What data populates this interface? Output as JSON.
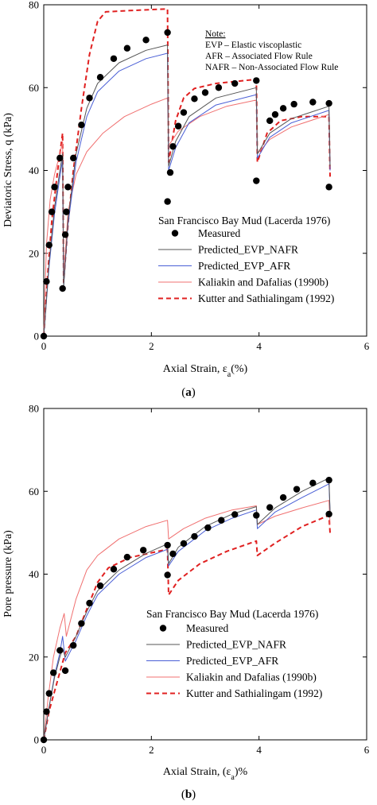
{
  "chart_data": [
    {
      "type": "line",
      "caption": "(a)",
      "xlabel": "Axial Strain, εa(%)",
      "ylabel": "Deviatoric Stress, q (kPa)",
      "xlim": [
        0,
        6
      ],
      "ylim": [
        0,
        80
      ],
      "xticks": [
        0,
        2,
        4,
        6
      ],
      "yticks": [
        0,
        20,
        40,
        60,
        80
      ],
      "note": {
        "title": "Note:",
        "lines": [
          "EVP  – Elastic viscoplastic",
          "AFR  – Associated Flow Rule",
          "NAFR – Non-Associated Flow Rule"
        ]
      },
      "legend_title": "San Francisco Bay Mud (Lacerda 1976)",
      "legend_placement": "center-right",
      "series": [
        {
          "name": "Measured",
          "style": "markers",
          "color": "#000000",
          "points": [
            [
              0,
              0
            ],
            [
              0.05,
              13.2
            ],
            [
              0.1,
              22
            ],
            [
              0.15,
              30
            ],
            [
              0.2,
              36
            ],
            [
              0.3,
              43
            ],
            [
              0.35,
              11.5
            ],
            [
              0.4,
              24.5
            ],
            [
              0.42,
              30
            ],
            [
              0.45,
              36
            ],
            [
              0.55,
              43
            ],
            [
              0.7,
              51
            ],
            [
              0.85,
              57.5
            ],
            [
              1.05,
              62.5
            ],
            [
              1.3,
              67
            ],
            [
              1.55,
              69.5
            ],
            [
              1.9,
              71.5
            ],
            [
              2.3,
              73.3
            ],
            [
              2.3,
              32.5
            ],
            [
              2.35,
              39.5
            ],
            [
              2.4,
              45.8
            ],
            [
              2.5,
              50.7
            ],
            [
              2.6,
              54
            ],
            [
              2.8,
              57.3
            ],
            [
              3.0,
              58.8
            ],
            [
              3.25,
              60
            ],
            [
              3.55,
              61
            ],
            [
              3.95,
              61.7
            ],
            [
              3.95,
              37.5
            ],
            [
              4.2,
              52
            ],
            [
              4.3,
              53.5
            ],
            [
              4.45,
              55
            ],
            [
              4.65,
              56
            ],
            [
              5.0,
              56.5
            ],
            [
              5.3,
              56.2
            ],
            [
              5.3,
              36
            ]
          ]
        },
        {
          "name": "Predicted_EVP_NAFR",
          "style": "solid",
          "color": "#555555",
          "points": [
            [
              0,
              0
            ],
            [
              0.1,
              18
            ],
            [
              0.2,
              31
            ],
            [
              0.3,
              40
            ],
            [
              0.35,
              44
            ],
            [
              0.37,
              12
            ],
            [
              0.45,
              28
            ],
            [
              0.6,
              44
            ],
            [
              0.8,
              55
            ],
            [
              1.0,
              61
            ],
            [
              1.4,
              66
            ],
            [
              1.9,
              69
            ],
            [
              2.3,
              70.3
            ],
            [
              2.32,
              41
            ],
            [
              2.45,
              47
            ],
            [
              2.7,
              53
            ],
            [
              3.2,
              57.5
            ],
            [
              3.95,
              60
            ],
            [
              3.97,
              44
            ],
            [
              4.2,
              49
            ],
            [
              4.6,
              52.5
            ],
            [
              5.3,
              55.5
            ],
            [
              5.32,
              41
            ]
          ]
        },
        {
          "name": "Predicted_EVP_AFR",
          "style": "solid",
          "color": "#4a5fd6",
          "points": [
            [
              0,
              0
            ],
            [
              0.1,
              17
            ],
            [
              0.2,
              29.5
            ],
            [
              0.3,
              38.5
            ],
            [
              0.35,
              42.5
            ],
            [
              0.37,
              12
            ],
            [
              0.45,
              27
            ],
            [
              0.6,
              42
            ],
            [
              0.8,
              53
            ],
            [
              1.0,
              59
            ],
            [
              1.4,
              64
            ],
            [
              1.9,
              67
            ],
            [
              2.3,
              68.3
            ],
            [
              2.32,
              40
            ],
            [
              2.45,
              45.5
            ],
            [
              2.7,
              51.5
            ],
            [
              3.2,
              55.8
            ],
            [
              3.95,
              58.3
            ],
            [
              3.97,
              43
            ],
            [
              4.2,
              48
            ],
            [
              4.6,
              51.5
            ],
            [
              5.3,
              54.5
            ],
            [
              5.32,
              40
            ]
          ]
        },
        {
          "name": "Kaliakin and Dafalias (1990b)",
          "style": "solid",
          "color": "#f07070",
          "points": [
            [
              0,
              0
            ],
            [
              0.05,
              22
            ],
            [
              0.12,
              33
            ],
            [
              0.2,
              39
            ],
            [
              0.3,
              44
            ],
            [
              0.35,
              47
            ],
            [
              0.37,
              14
            ],
            [
              0.45,
              30
            ],
            [
              0.6,
              39
            ],
            [
              0.8,
              44.5
            ],
            [
              1.1,
              49
            ],
            [
              1.5,
              53
            ],
            [
              2.0,
              56
            ],
            [
              2.3,
              57.5
            ],
            [
              2.32,
              46
            ],
            [
              2.5,
              49.5
            ],
            [
              2.9,
              53
            ],
            [
              3.4,
              55.5
            ],
            [
              3.95,
              57
            ],
            [
              3.97,
              44
            ],
            [
              4.2,
              47.5
            ],
            [
              4.6,
              50.5
            ],
            [
              5.3,
              53.5
            ],
            [
              5.32,
              41
            ]
          ]
        },
        {
          "name": "Kutter and Sathialingam (1992)",
          "style": "dashed",
          "color": "#e02020",
          "points": [
            [
              0,
              0
            ],
            [
              0.08,
              16
            ],
            [
              0.15,
              28
            ],
            [
              0.25,
              39
            ],
            [
              0.35,
              49
            ],
            [
              0.37,
              13
            ],
            [
              0.45,
              27
            ],
            [
              0.55,
              40
            ],
            [
              0.7,
              55
            ],
            [
              0.85,
              68
            ],
            [
              1.0,
              76
            ],
            [
              1.15,
              78.3
            ],
            [
              1.6,
              78.6
            ],
            [
              2.3,
              79
            ],
            [
              2.32,
              42
            ],
            [
              2.45,
              52
            ],
            [
              2.6,
              57.5
            ],
            [
              2.8,
              59.8
            ],
            [
              3.2,
              61
            ],
            [
              3.95,
              62
            ],
            [
              3.97,
              42
            ],
            [
              4.15,
              49
            ],
            [
              4.4,
              52
            ],
            [
              4.8,
              53
            ],
            [
              5.3,
              53
            ],
            [
              5.32,
              38.5
            ]
          ]
        }
      ]
    },
    {
      "type": "line",
      "caption": "(b)",
      "xlabel": "Axial Strain, (εa)%",
      "ylabel": "Pore pressure (kPa)",
      "xlim": [
        0,
        6
      ],
      "ylim": [
        0,
        80
      ],
      "xticks": [
        0,
        2,
        4,
        6
      ],
      "yticks": [
        0,
        20,
        40,
        60,
        80
      ],
      "legend_title": "San Francisco Bay Mud (Lacerda 1976)",
      "legend_placement": "bottom-right",
      "series": [
        {
          "name": "Measured",
          "style": "markers",
          "color": "#000000",
          "points": [
            [
              0,
              0
            ],
            [
              0.05,
              6.8
            ],
            [
              0.1,
              11.2
            ],
            [
              0.18,
              16.2
            ],
            [
              0.3,
              21.6
            ],
            [
              0.4,
              16.7
            ],
            [
              0.55,
              22.8
            ],
            [
              0.7,
              28.1
            ],
            [
              0.85,
              33
            ],
            [
              1.05,
              37.2
            ],
            [
              1.3,
              41.2
            ],
            [
              1.55,
              44.1
            ],
            [
              1.85,
              45.8
            ],
            [
              2.3,
              47
            ],
            [
              2.3,
              39.8
            ],
            [
              2.4,
              44.9
            ],
            [
              2.6,
              47.4
            ],
            [
              2.8,
              49.1
            ],
            [
              3.05,
              51.2
            ],
            [
              3.3,
              53
            ],
            [
              3.55,
              54.4
            ],
            [
              3.95,
              54.2
            ],
            [
              4.2,
              56.1
            ],
            [
              4.45,
              58.5
            ],
            [
              4.7,
              60.5
            ],
            [
              5.0,
              62
            ],
            [
              5.3,
              62.7
            ],
            [
              5.3,
              54.5
            ]
          ]
        },
        {
          "name": "Predicted_EVP_NAFR",
          "style": "solid",
          "color": "#555555",
          "points": [
            [
              0,
              0
            ],
            [
              0.1,
              8
            ],
            [
              0.2,
              15
            ],
            [
              0.3,
              20
            ],
            [
              0.35,
              22
            ],
            [
              0.4,
              20
            ],
            [
              0.6,
              25
            ],
            [
              0.8,
              31
            ],
            [
              1.0,
              36
            ],
            [
              1.4,
              41
            ],
            [
              1.9,
              45
            ],
            [
              2.3,
              47.3
            ],
            [
              2.32,
              42.5
            ],
            [
              2.5,
              46.5
            ],
            [
              3.0,
              51.5
            ],
            [
              3.5,
              54.5
            ],
            [
              3.95,
              56.3
            ],
            [
              3.97,
              52
            ],
            [
              4.3,
              56
            ],
            [
              4.8,
              60
            ],
            [
              5.3,
              63.2
            ],
            [
              5.32,
              55
            ]
          ]
        },
        {
          "name": "Predicted_EVP_AFR",
          "style": "solid",
          "color": "#4a5fd6",
          "points": [
            [
              0,
              0
            ],
            [
              0.1,
              8
            ],
            [
              0.2,
              15.5
            ],
            [
              0.3,
              21
            ],
            [
              0.35,
              25
            ],
            [
              0.4,
              19
            ],
            [
              0.6,
              24
            ],
            [
              0.8,
              30
            ],
            [
              1.0,
              35
            ],
            [
              1.4,
              40
            ],
            [
              1.9,
              44
            ],
            [
              2.3,
              46
            ],
            [
              2.32,
              42
            ],
            [
              2.5,
              45.5
            ],
            [
              3.0,
              50.5
            ],
            [
              3.5,
              53.5
            ],
            [
              3.95,
              55.5
            ],
            [
              3.97,
              51
            ],
            [
              4.3,
              55
            ],
            [
              4.8,
              58.5
            ],
            [
              5.3,
              61.8
            ],
            [
              5.32,
              55
            ]
          ]
        },
        {
          "name": "Kaliakin and Dafalias (1990b)",
          "style": "solid",
          "color": "#f07070",
          "points": [
            [
              0,
              0
            ],
            [
              0.08,
              10
            ],
            [
              0.18,
              20
            ],
            [
              0.3,
              27
            ],
            [
              0.38,
              30.5
            ],
            [
              0.42,
              25
            ],
            [
              0.6,
              34
            ],
            [
              0.8,
              41
            ],
            [
              1.0,
              44.5
            ],
            [
              1.4,
              48.5
            ],
            [
              1.9,
              51.5
            ],
            [
              2.3,
              53
            ],
            [
              2.32,
              48.5
            ],
            [
              2.6,
              51
            ],
            [
              3.0,
              53.5
            ],
            [
              3.5,
              55.5
            ],
            [
              3.95,
              56.5
            ],
            [
              3.97,
              52
            ],
            [
              4.3,
              54
            ],
            [
              4.8,
              56
            ],
            [
              5.3,
              57.8
            ],
            [
              5.32,
              52
            ]
          ]
        },
        {
          "name": "Kutter and Sathialingam (1992)",
          "style": "dashed",
          "color": "#e02020",
          "points": [
            [
              0,
              0
            ],
            [
              0.1,
              7
            ],
            [
              0.25,
              14
            ],
            [
              0.4,
              21
            ],
            [
              0.6,
              25
            ],
            [
              0.8,
              31.5
            ],
            [
              1.0,
              38
            ],
            [
              1.2,
              41.5
            ],
            [
              1.6,
              44
            ],
            [
              2.3,
              46
            ],
            [
              2.32,
              35
            ],
            [
              2.5,
              38.5
            ],
            [
              2.9,
              42.5
            ],
            [
              3.4,
              45.5
            ],
            [
              3.95,
              48
            ],
            [
              3.97,
              44.5
            ],
            [
              4.3,
              47.5
            ],
            [
              4.8,
              51.5
            ],
            [
              5.3,
              54.2
            ],
            [
              5.32,
              50
            ]
          ]
        }
      ]
    }
  ]
}
